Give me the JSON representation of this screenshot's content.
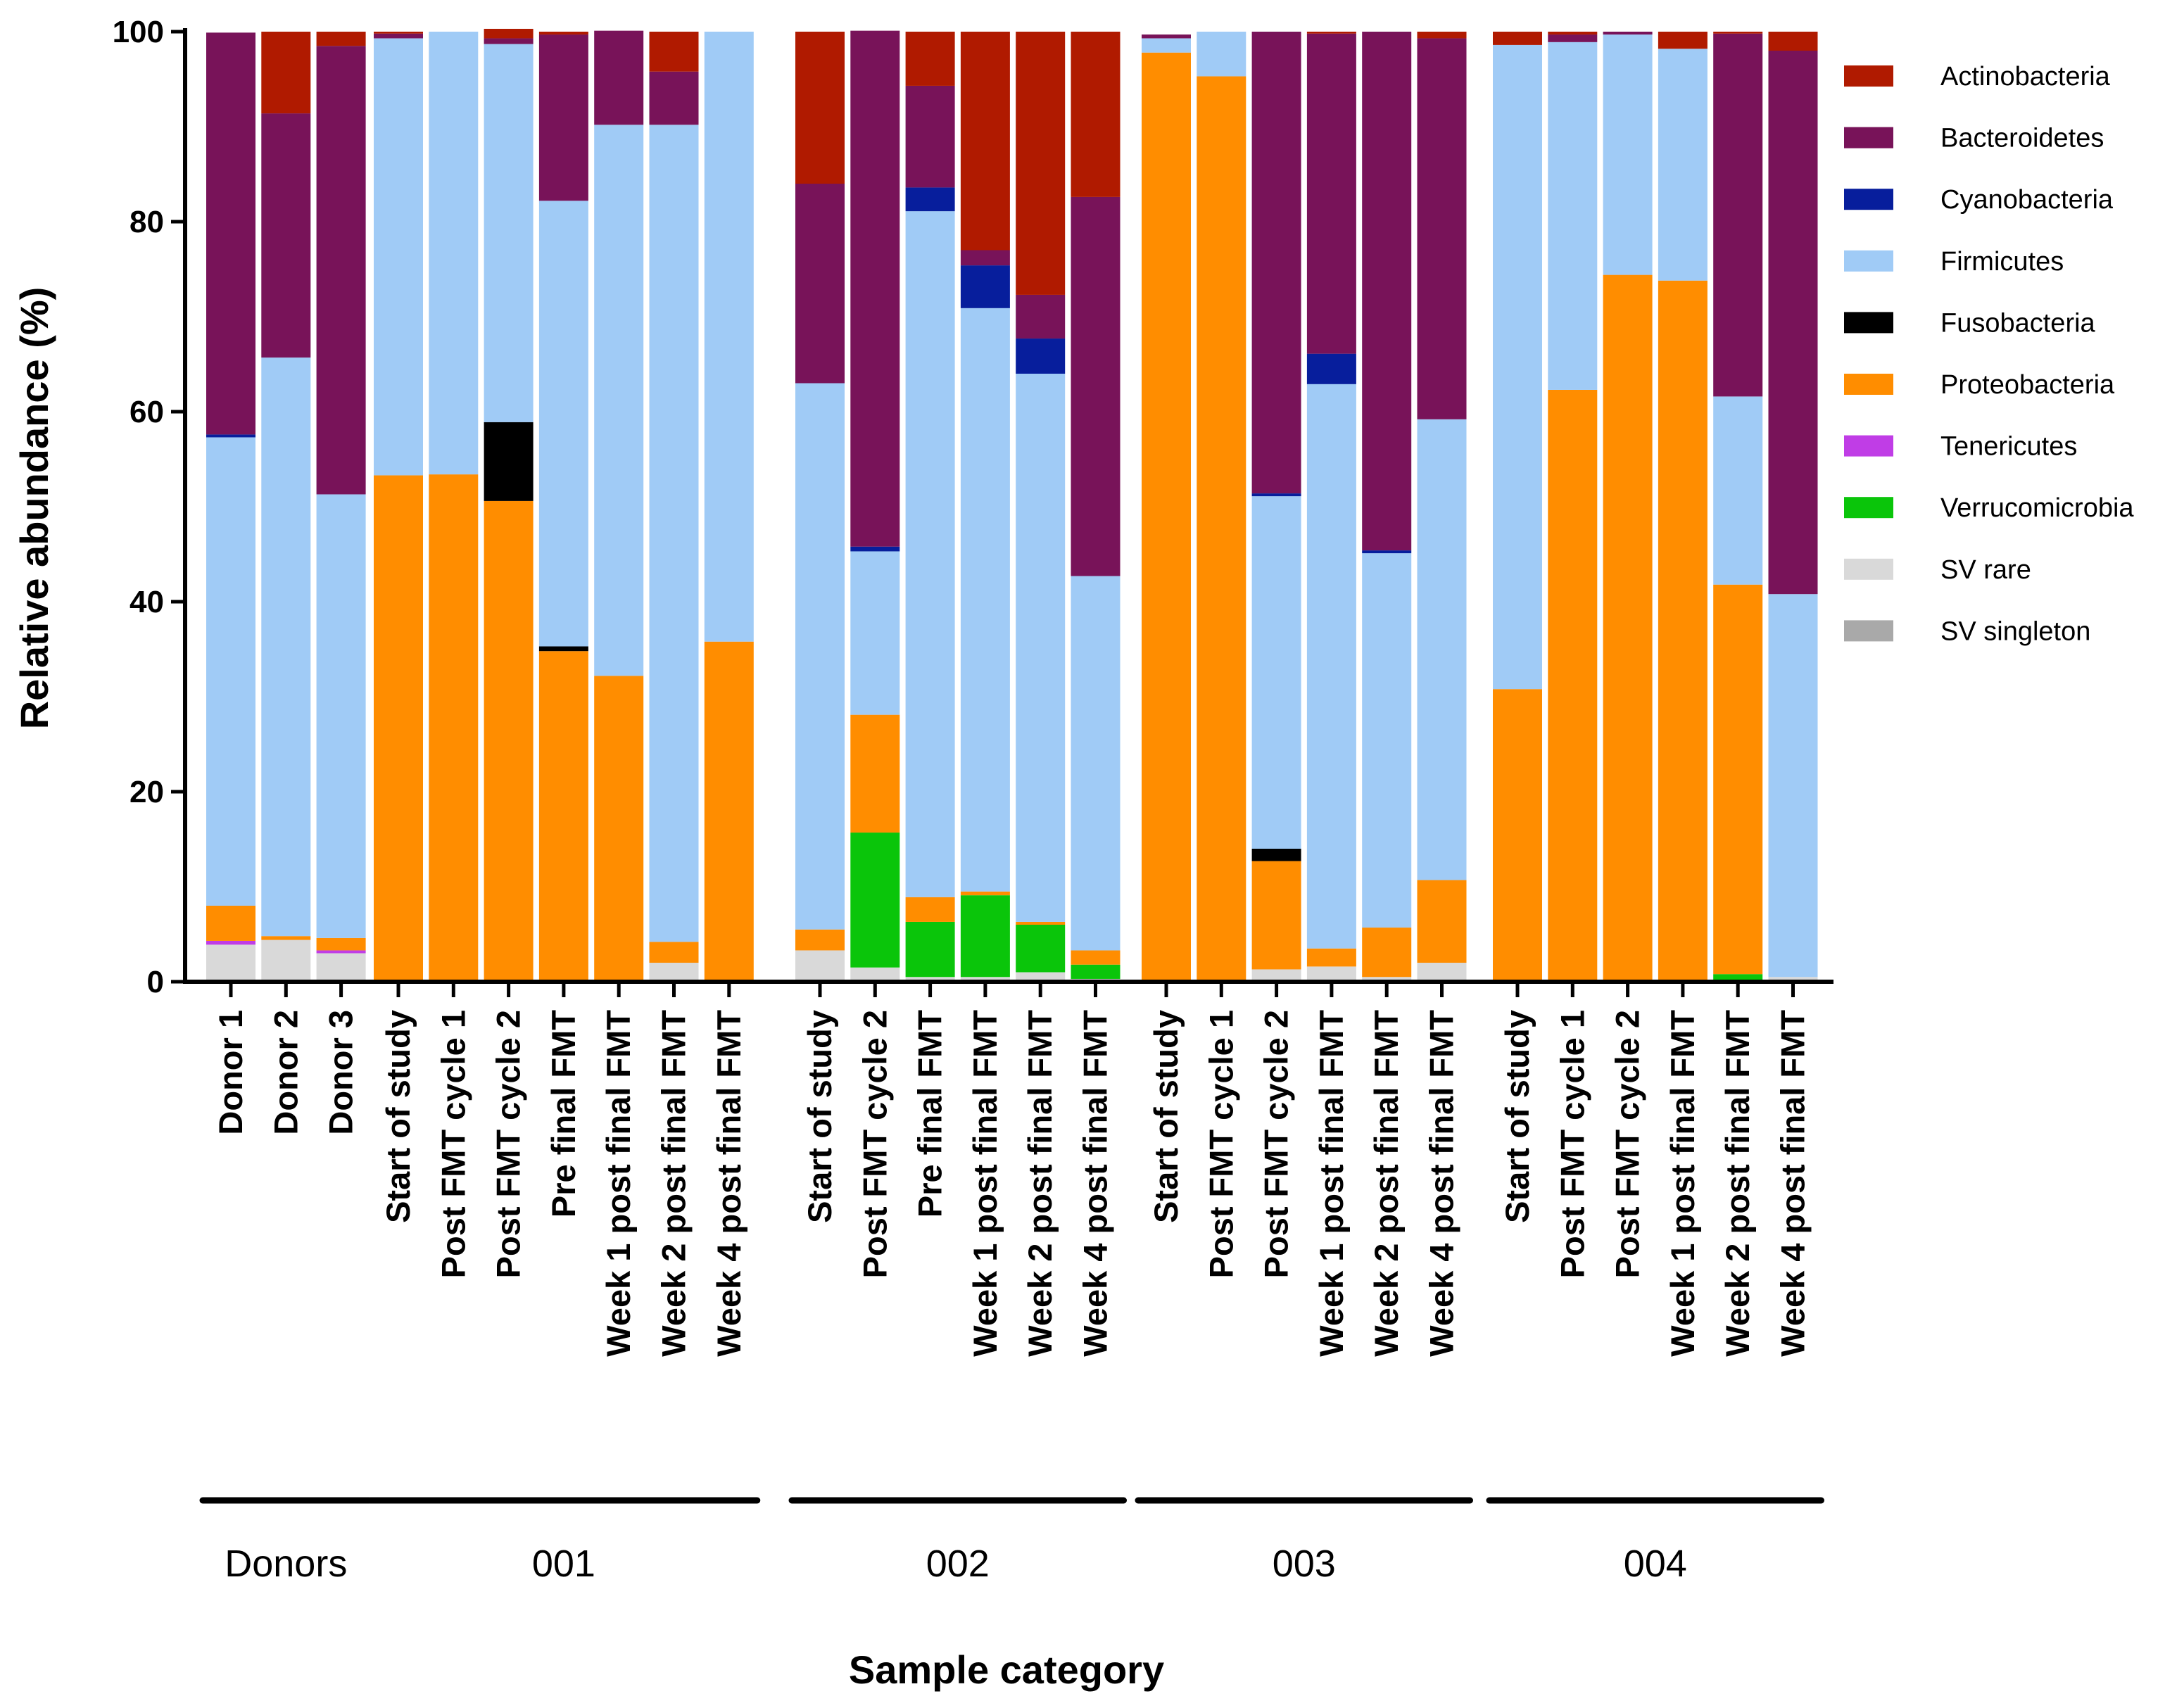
{
  "chart_data": {
    "type": "bar",
    "stacked": true,
    "title": "",
    "xlabel": "Sample category",
    "ylabel": "Relative abundance (%)",
    "ylim": [
      0,
      100
    ],
    "yticks": [
      "0",
      "20",
      "40",
      "60",
      "80",
      "100"
    ],
    "legend_position": "right",
    "categories": [
      "Donor 1",
      "Donor 2",
      "Donor 3",
      "Start of study",
      "Post FMT cycle 1",
      "Post FMT cycle 2",
      "Pre final FMT",
      "Week 1 post final FMT",
      "Week 2 post final FMT",
      "Week 4 post final FMT",
      "Start of study",
      "Post FMT cycle 2",
      "Pre final FMT",
      "Week 1 post final FMT",
      "Week 2 post final FMT",
      "Week 4 post final FMT",
      "Start of study",
      "Post FMT cycle 1",
      "Post FMT cycle 2",
      "Week 1 post final FMT",
      "Week 2 post final FMT",
      "Week 4 post final FMT",
      "Start of study",
      "Post FMT cycle 1",
      "Post FMT cycle 2",
      "Week 1 post final FMT",
      "Week 2 post final FMT",
      "Week 4 post final FMT"
    ],
    "groups": [
      {
        "label": "Donors",
        "start": 0,
        "end": 2
      },
      {
        "label": "001",
        "start": 3,
        "end": 9
      },
      {
        "label": "002",
        "start": 10,
        "end": 15
      },
      {
        "label": "003",
        "start": 16,
        "end": 21
      },
      {
        "label": "004",
        "start": 22,
        "end": 27
      }
    ],
    "series": [
      {
        "name": "SV singleton",
        "color": "#a9a9a9",
        "values": [
          0,
          0,
          0,
          0,
          0,
          0,
          0,
          0,
          0,
          0,
          0,
          0,
          0,
          0,
          0,
          0,
          0,
          0,
          0,
          0,
          0,
          0,
          0,
          0,
          0,
          0,
          0,
          0
        ]
      },
      {
        "name": "SV rare",
        "color": "#d9d9d9",
        "values": [
          3.9,
          4.4,
          3.0,
          0,
          0,
          0,
          0,
          0,
          2.0,
          0,
          3.3,
          1.5,
          0.5,
          0.5,
          1.0,
          0.3,
          0,
          0,
          1.3,
          1.6,
          0.5,
          2.0,
          0,
          0,
          0,
          0,
          0,
          0.5
        ]
      },
      {
        "name": "Verrucomicrobia",
        "color": "#0ac50a",
        "values": [
          0,
          0,
          0,
          0,
          0,
          0,
          0,
          0,
          0,
          0,
          0,
          14.2,
          5.8,
          8.6,
          5.0,
          1.5,
          0,
          0,
          0,
          0,
          0,
          0,
          0,
          0,
          0,
          0,
          0.8,
          0
        ]
      },
      {
        "name": "Tenericutes",
        "color": "#c03de6",
        "values": [
          0.4,
          0,
          0.3,
          0,
          0,
          0,
          0,
          0,
          0,
          0,
          0,
          0,
          0,
          0,
          0,
          0,
          0,
          0,
          0,
          0,
          0,
          0,
          0,
          0,
          0,
          0,
          0,
          0
        ]
      },
      {
        "name": "Proteobacteria",
        "color": "#ff8d00",
        "values": [
          3.7,
          0.4,
          1.3,
          53.3,
          53.4,
          50.6,
          34.8,
          32.2,
          2.2,
          35.8,
          2.2,
          12.4,
          2.6,
          0.4,
          0.3,
          1.5,
          97.8,
          95.3,
          11.4,
          1.9,
          5.2,
          8.7,
          30.8,
          62.3,
          74.4,
          73.8,
          41.0,
          0
        ]
      },
      {
        "name": "Fusobacteria",
        "color": "#000000",
        "values": [
          0,
          0,
          0,
          0,
          0,
          8.3,
          0.5,
          0,
          0,
          0,
          0,
          0,
          0,
          0,
          0,
          0,
          0,
          0,
          1.3,
          0,
          0,
          0,
          0,
          0,
          0,
          0,
          0,
          0
        ]
      },
      {
        "name": "Firmicutes",
        "color": "#a0cbf6",
        "values": [
          49.3,
          60.9,
          46.7,
          46.0,
          46.6,
          39.8,
          46.9,
          58.0,
          86.0,
          64.2,
          57.5,
          17.2,
          72.2,
          61.4,
          57.7,
          39.4,
          1.5,
          4.7,
          37.1,
          59.4,
          39.4,
          48.5,
          67.8,
          36.6,
          25.3,
          24.4,
          19.8,
          40.3
        ]
      },
      {
        "name": "Cyanobacteria",
        "color": "#071e9c",
        "values": [
          0.3,
          0,
          0,
          0,
          0,
          0,
          0,
          0,
          0,
          0,
          0,
          0.5,
          2.5,
          4.5,
          3.7,
          0,
          0,
          0,
          0.3,
          3.2,
          0.3,
          0,
          0,
          0,
          0,
          0,
          0,
          0
        ]
      },
      {
        "name": "Bacteroidetes",
        "color": "#781359",
        "values": [
          42.3,
          25.7,
          47.2,
          0.5,
          0,
          0.6,
          17.5,
          9.9,
          5.6,
          0,
          21.0,
          54.3,
          10.7,
          1.6,
          4.6,
          39.9,
          0.4,
          0,
          48.6,
          33.7,
          54.6,
          40.1,
          0,
          0.8,
          0.3,
          0,
          38.2,
          57.2
        ]
      },
      {
        "name": "Actinobacteria",
        "color": "#b01a00",
        "values": [
          0,
          8.6,
          1.5,
          0.2,
          0,
          1.0,
          0.3,
          0,
          4.2,
          0,
          16.0,
          0,
          5.7,
          23.0,
          27.7,
          17.4,
          0,
          0,
          0,
          0.2,
          0,
          0.7,
          1.4,
          0.3,
          0,
          1.8,
          0.2,
          2.0
        ]
      }
    ],
    "legend_order": [
      "Actinobacteria",
      "Bacteroidetes",
      "Cyanobacteria",
      "Firmicutes",
      "Fusobacteria",
      "Proteobacteria",
      "Tenericutes",
      "Verrucomicrobia",
      "SV rare",
      "SV singleton"
    ]
  }
}
